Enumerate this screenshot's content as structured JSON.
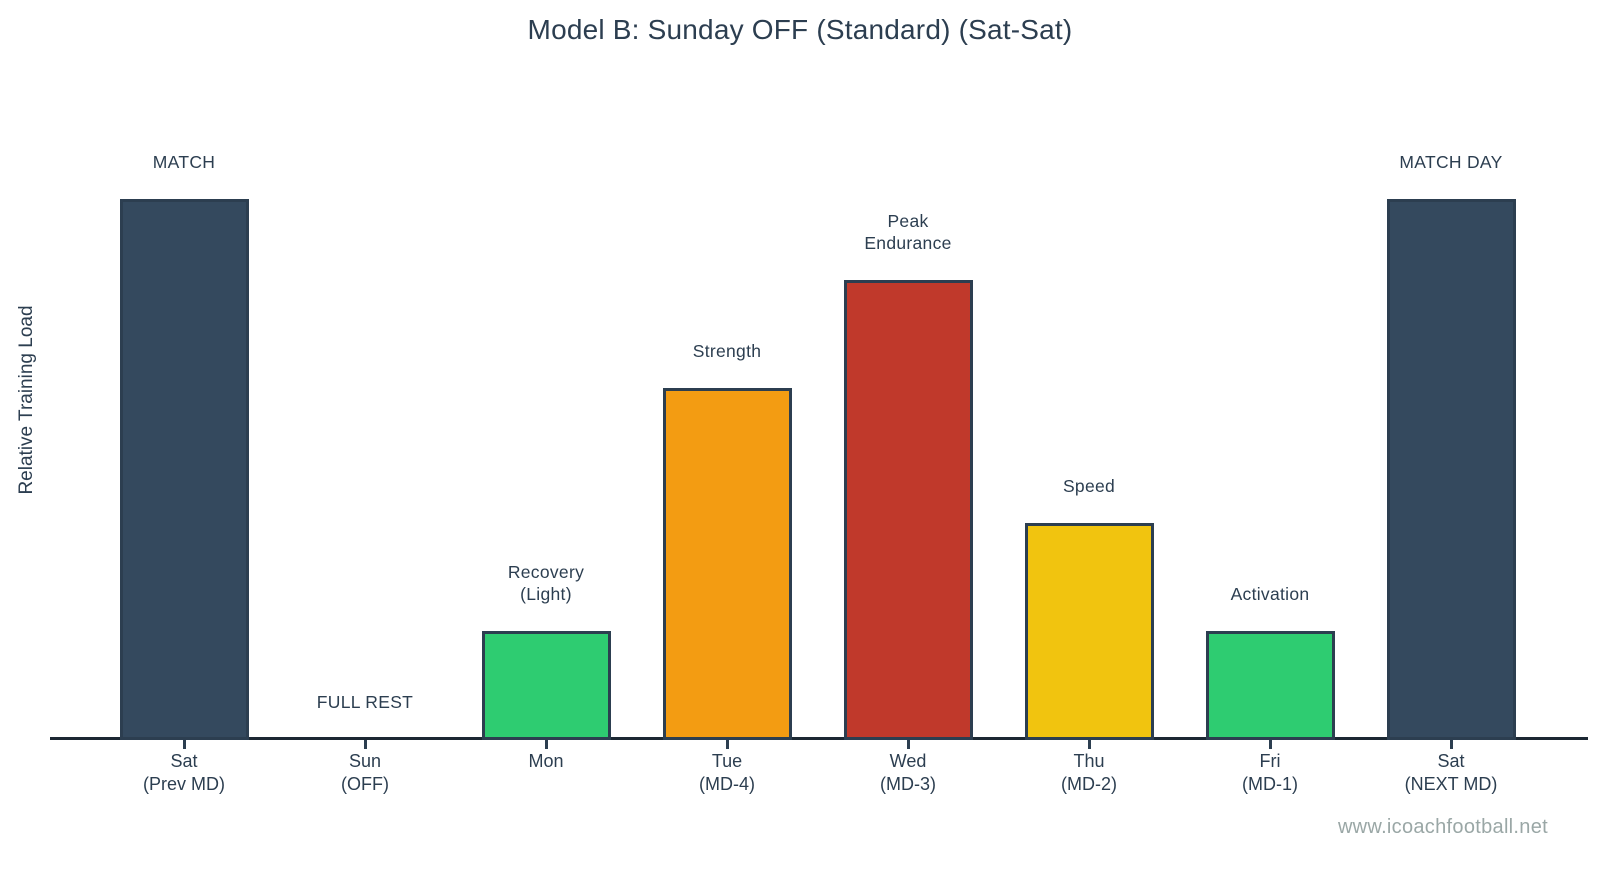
{
  "title": "Model B: Sunday OFF (Standard) (Sat-Sat)",
  "watermark": "www.icoachfootball.net",
  "colors": {
    "navy": "#34495e",
    "green": "#2ecc71",
    "orange": "#f39c12",
    "red": "#c0392b",
    "yellow": "#f1c40f",
    "bar_border": "#2c3e50",
    "text": "#2c3e50",
    "axis_line": "#1c2833",
    "watermark_gray": "#9aa7a6",
    "background": "#ffffff"
  },
  "chart_data": {
    "type": "bar",
    "title": "Model B: Sunday OFF (Standard) (Sat-Sat)",
    "xlabel": "",
    "ylabel": "Relative Training Load",
    "ylim": [
      0,
      115
    ],
    "grid": false,
    "legend": false,
    "categories": [
      "Sat\n(Prev MD)",
      "Sun\n(OFF)",
      "Mon",
      "Tue\n(MD-4)",
      "Wed\n(MD-3)",
      "Thu\n(MD-2)",
      "Fri\n(MD-1)",
      "Sat\n(NEXT MD)"
    ],
    "values": [
      100,
      0,
      20,
      65,
      85,
      40,
      20,
      100
    ],
    "annotations": [
      "MATCH",
      "FULL REST",
      "Recovery\n(Light)",
      "Strength",
      "Peak\nEndurance",
      "Speed",
      "Activation",
      "MATCH DAY"
    ],
    "bar_colors": [
      "#34495e",
      null,
      "#2ecc71",
      "#f39c12",
      "#c0392b",
      "#f1c40f",
      "#2ecc71",
      "#34495e"
    ],
    "days": [
      {
        "id": "sat-prev",
        "tick_label": "Sat\n(Prev MD)",
        "value": 100,
        "color": "#34495e",
        "annotation": "MATCH"
      },
      {
        "id": "sun",
        "tick_label": "Sun\n(OFF)",
        "value": 0,
        "color": null,
        "annotation": "FULL REST"
      },
      {
        "id": "mon",
        "tick_label": "Mon",
        "value": 20,
        "color": "#2ecc71",
        "annotation": "Recovery\n(Light)"
      },
      {
        "id": "tue",
        "tick_label": "Tue\n(MD-4)",
        "value": 65,
        "color": "#f39c12",
        "annotation": "Strength"
      },
      {
        "id": "wed",
        "tick_label": "Wed\n(MD-3)",
        "value": 85,
        "color": "#c0392b",
        "annotation": "Peak\nEndurance"
      },
      {
        "id": "thu",
        "tick_label": "Thu\n(MD-2)",
        "value": 40,
        "color": "#f1c40f",
        "annotation": "Speed"
      },
      {
        "id": "fri",
        "tick_label": "Fri\n(MD-1)",
        "value": 20,
        "color": "#2ecc71",
        "annotation": "Activation"
      },
      {
        "id": "sat-next",
        "tick_label": "Sat\n(NEXT MD)",
        "value": 100,
        "color": "#34495e",
        "annotation": "MATCH DAY"
      }
    ]
  }
}
